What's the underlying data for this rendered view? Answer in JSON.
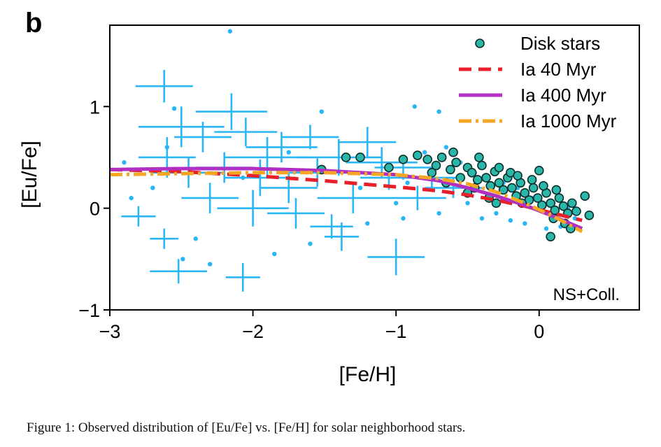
{
  "panel_label": "b",
  "caption": "Figure 1: Observed distribution of [Eu/Fe] vs. [Fe/H] for solar neighborhood stars.",
  "colors": {
    "halo": "#29b6f6",
    "disk_fill": "#2ab7a9",
    "disk_edge": "#0b2d2a",
    "ia40": "#e8202a",
    "ia400": "#b22fc4",
    "ia1000": "#f5a623"
  },
  "chart_data": {
    "type": "scatter",
    "xlabel": "[Fe/H]",
    "ylabel": "[Eu/Fe]",
    "xlim": [
      -3,
      0.7
    ],
    "ylim": [
      -1,
      1.8
    ],
    "xticks": [
      -3,
      -2,
      -1,
      0
    ],
    "xtick_labels": [
      "−3",
      "−2",
      "−1",
      "0"
    ],
    "yticks": [
      -1,
      0,
      1
    ],
    "ytick_labels": [
      "−1",
      "0",
      "1"
    ],
    "grid": false,
    "legend_position": "top-right",
    "annotation": "NS+Coll.",
    "legend": [
      {
        "label": "Disk stars",
        "kind": "marker"
      },
      {
        "label": "Ia 40 Myr",
        "kind": "dashed"
      },
      {
        "label": "Ia 400 Myr",
        "kind": "solid"
      },
      {
        "label": "Ia 1000 Myr",
        "kind": "dashdot"
      }
    ],
    "halo_errorbars": [
      {
        "x": -2.62,
        "y": 1.2,
        "xerr": 0.2,
        "yerr": 0.16
      },
      {
        "x": -2.15,
        "y": 0.95,
        "xerr": 0.25,
        "yerr": 0.18
      },
      {
        "x": -2.5,
        "y": 0.8,
        "xerr": 0.3,
        "yerr": 0.2
      },
      {
        "x": -2.35,
        "y": 0.7,
        "xerr": 0.2,
        "yerr": 0.15
      },
      {
        "x": -2.05,
        "y": 0.75,
        "xerr": 0.22,
        "yerr": 0.14
      },
      {
        "x": -1.8,
        "y": 0.6,
        "xerr": 0.25,
        "yerr": 0.15
      },
      {
        "x": -1.6,
        "y": 0.7,
        "xerr": 0.2,
        "yerr": 0.12
      },
      {
        "x": -1.4,
        "y": 0.5,
        "xerr": 0.3,
        "yerr": 0.18
      },
      {
        "x": -1.2,
        "y": 0.65,
        "xerr": 0.2,
        "yerr": 0.15
      },
      {
        "x": -2.6,
        "y": 0.5,
        "xerr": 0.2,
        "yerr": 0.2
      },
      {
        "x": -2.45,
        "y": 0.35,
        "xerr": 0.25,
        "yerr": 0.15
      },
      {
        "x": -2.2,
        "y": 0.4,
        "xerr": 0.2,
        "yerr": 0.15
      },
      {
        "x": -1.95,
        "y": 0.3,
        "xerr": 0.25,
        "yerr": 0.18
      },
      {
        "x": -1.75,
        "y": 0.2,
        "xerr": 0.2,
        "yerr": 0.15
      },
      {
        "x": -1.55,
        "y": 0.35,
        "xerr": 0.2,
        "yerr": 0.14
      },
      {
        "x": -1.3,
        "y": 0.1,
        "xerr": 0.25,
        "yerr": 0.15
      },
      {
        "x": -1.05,
        "y": 0.3,
        "xerr": 0.2,
        "yerr": 0.12
      },
      {
        "x": -0.85,
        "y": 0.1,
        "xerr": 0.2,
        "yerr": 0.12
      },
      {
        "x": -2.3,
        "y": 0.1,
        "xerr": 0.2,
        "yerr": 0.15
      },
      {
        "x": -2.0,
        "y": 0.0,
        "xerr": 0.25,
        "yerr": 0.18
      },
      {
        "x": -1.7,
        "y": -0.05,
        "xerr": 0.2,
        "yerr": 0.15
      },
      {
        "x": -2.8,
        "y": -0.08,
        "xerr": 0.12,
        "yerr": 0.1
      },
      {
        "x": -2.62,
        "y": -0.3,
        "xerr": 0.1,
        "yerr": 0.1
      },
      {
        "x": -1.45,
        "y": -0.18,
        "xerr": 0.15,
        "yerr": 0.12
      },
      {
        "x": -1.38,
        "y": -0.28,
        "xerr": 0.12,
        "yerr": 0.14
      },
      {
        "x": -1.0,
        "y": -0.48,
        "xerr": 0.2,
        "yerr": 0.18
      },
      {
        "x": -2.52,
        "y": -0.62,
        "xerr": 0.2,
        "yerr": 0.12
      },
      {
        "x": -2.07,
        "y": -0.68,
        "xerr": 0.12,
        "yerr": 0.14
      },
      {
        "x": -1.9,
        "y": 0.5,
        "xerr": 0.3,
        "yerr": 0.2
      },
      {
        "x": -1.1,
        "y": 0.45,
        "xerr": 0.25,
        "yerr": 0.15
      },
      {
        "x": -0.95,
        "y": 0.4,
        "xerr": 0.2,
        "yerr": 0.12
      },
      {
        "x": -0.75,
        "y": 0.3,
        "xerr": 0.2,
        "yerr": 0.1
      },
      {
        "x": -0.6,
        "y": 0.2,
        "xerr": 0.2,
        "yerr": 0.1
      }
    ],
    "halo_points": [
      [
        -2.16,
        1.74
      ],
      [
        -1.52,
        0.95
      ],
      [
        -0.87,
        1.0
      ],
      [
        -0.7,
        0.95
      ],
      [
        -2.55,
        0.98
      ],
      [
        -2.9,
        0.45
      ],
      [
        -2.7,
        0.2
      ],
      [
        -2.4,
        -0.3
      ],
      [
        -2.3,
        -0.55
      ],
      [
        -1.85,
        -0.45
      ],
      [
        -1.6,
        -0.35
      ],
      [
        -1.2,
        -0.15
      ],
      [
        -0.95,
        -0.1
      ],
      [
        -0.7,
        -0.05
      ],
      [
        -0.5,
        0.05
      ],
      [
        -0.4,
        -0.1
      ],
      [
        -0.3,
        -0.05
      ],
      [
        -0.2,
        -0.12
      ],
      [
        -0.1,
        -0.15
      ],
      [
        0.05,
        -0.2
      ],
      [
        0.15,
        -0.18
      ],
      [
        0.25,
        -0.1
      ],
      [
        -2.49,
        -0.5
      ],
      [
        -2.07,
        0.3
      ],
      [
        -1.75,
        0.55
      ],
      [
        -1.25,
        0.2
      ],
      [
        -0.65,
        0.6
      ],
      [
        -0.55,
        0.45
      ],
      [
        -0.45,
        0.35
      ],
      [
        -0.35,
        0.1
      ],
      [
        -0.25,
        0.25
      ],
      [
        -0.15,
        0.2
      ],
      [
        -0.05,
        0.1
      ],
      [
        0.1,
        0.05
      ],
      [
        0.2,
        0.0
      ],
      [
        -0.8,
        0.55
      ],
      [
        -0.92,
        0.25
      ],
      [
        -1.0,
        0.05
      ],
      [
        -2.85,
        0.1
      ],
      [
        -2.6,
        0.6
      ]
    ],
    "disk_points": [
      [
        -0.85,
        0.52
      ],
      [
        -0.78,
        0.48
      ],
      [
        -0.72,
        0.42
      ],
      [
        -0.68,
        0.5
      ],
      [
        -0.62,
        0.38
      ],
      [
        -0.58,
        0.45
      ],
      [
        -0.55,
        0.3
      ],
      [
        -0.5,
        0.4
      ],
      [
        -0.47,
        0.35
      ],
      [
        -0.43,
        0.28
      ],
      [
        -0.4,
        0.42
      ],
      [
        -0.37,
        0.3
      ],
      [
        -0.34,
        0.22
      ],
      [
        -0.31,
        0.36
      ],
      [
        -0.28,
        0.25
      ],
      [
        -0.25,
        0.18
      ],
      [
        -0.22,
        0.3
      ],
      [
        -0.19,
        0.2
      ],
      [
        -0.16,
        0.12
      ],
      [
        -0.13,
        0.25
      ],
      [
        -0.1,
        0.15
      ],
      [
        -0.07,
        0.08
      ],
      [
        -0.04,
        0.2
      ],
      [
        -0.01,
        0.1
      ],
      [
        0.02,
        0.03
      ],
      [
        0.05,
        0.15
      ],
      [
        0.08,
        0.05
      ],
      [
        0.11,
        -0.02
      ],
      [
        0.14,
        0.1
      ],
      [
        0.17,
        0.02
      ],
      [
        0.2,
        -0.05
      ],
      [
        0.23,
        0.05
      ],
      [
        0.26,
        -0.03
      ],
      [
        0.32,
        0.12
      ],
      [
        0.35,
        -0.07
      ],
      [
        -0.95,
        0.48
      ],
      [
        -1.05,
        0.4
      ],
      [
        -1.25,
        0.5
      ],
      [
        -1.35,
        0.5
      ],
      [
        -1.52,
        0.38
      ],
      [
        -0.6,
        0.55
      ],
      [
        -0.45,
        0.2
      ],
      [
        -0.3,
        0.05
      ],
      [
        -0.2,
        0.35
      ],
      [
        -0.12,
        0.05
      ],
      [
        0.0,
        0.37
      ],
      [
        0.1,
        -0.1
      ],
      [
        0.18,
        -0.15
      ],
      [
        0.22,
        -0.2
      ],
      [
        0.08,
        -0.28
      ],
      [
        -0.35,
        0.1
      ],
      [
        -0.5,
        0.15
      ],
      [
        -0.65,
        0.25
      ],
      [
        -0.75,
        0.35
      ],
      [
        -0.42,
        0.5
      ],
      [
        -0.28,
        0.4
      ],
      [
        -0.15,
        0.32
      ],
      [
        -0.05,
        0.28
      ],
      [
        0.03,
        0.22
      ],
      [
        0.12,
        0.18
      ]
    ],
    "curves": [
      {
        "name": "Ia 40 Myr",
        "style": "dashed",
        "x": [
          -3.0,
          -2.5,
          -2.0,
          -1.5,
          -1.0,
          -0.7,
          -0.5,
          -0.3,
          -0.1,
          0.1,
          0.3
        ],
        "y": [
          0.38,
          0.36,
          0.32,
          0.27,
          0.21,
          0.17,
          0.13,
          0.08,
          0.02,
          -0.05,
          -0.12
        ]
      },
      {
        "name": "Ia 400 Myr",
        "style": "solid",
        "x": [
          -3.0,
          -2.5,
          -2.0,
          -1.5,
          -1.0,
          -0.7,
          -0.5,
          -0.3,
          -0.1,
          0.1,
          0.3
        ],
        "y": [
          0.38,
          0.39,
          0.39,
          0.37,
          0.33,
          0.27,
          0.2,
          0.12,
          0.03,
          -0.08,
          -0.2
        ]
      },
      {
        "name": "Ia 1000 Myr",
        "style": "dashdot",
        "x": [
          -3.0,
          -2.5,
          -2.0,
          -1.5,
          -1.0,
          -0.7,
          -0.5,
          -0.3,
          -0.1,
          0.1,
          0.3
        ],
        "y": [
          0.33,
          0.34,
          0.35,
          0.35,
          0.33,
          0.29,
          0.24,
          0.16,
          0.05,
          -0.08,
          -0.23
        ]
      }
    ]
  }
}
